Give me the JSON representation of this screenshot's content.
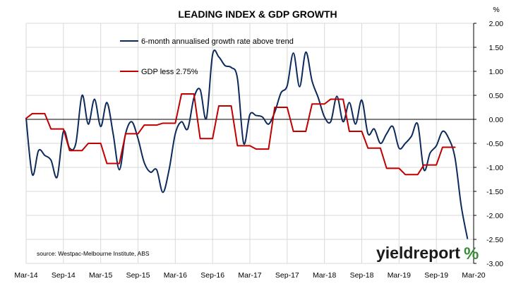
{
  "colors": {
    "leading_index": "#0c2a5b",
    "gdp": "#c00000",
    "grid": "#d9d9d9",
    "axis": "#000000",
    "logo_accent_green": "#3a8a3a",
    "logo_accent_red": "#c00000"
  },
  "source": "source: Westpac-Melbourne Institute, ABS",
  "logo": {
    "text": "yieldreport",
    "symbol": "%"
  },
  "chart_data": {
    "type": "line",
    "title": "LEADING INDEX & GDP GROWTH",
    "y_unit": "%",
    "ylim": [
      -3.0,
      2.0
    ],
    "y_ticks": [
      2.0,
      1.5,
      1.0,
      0.5,
      0.0,
      -0.5,
      -1.0,
      -1.5,
      -2.0,
      -2.5,
      -3.0
    ],
    "y_tick_labels": [
      "2.00",
      "1.50",
      "1.00",
      "0.50",
      "0.00",
      "-0.50",
      "-1.00",
      "-1.50",
      "-2.00",
      "-2.50",
      "-3.00"
    ],
    "xlim": [
      0,
      72
    ],
    "x_ticks": [
      0,
      6,
      12,
      18,
      24,
      30,
      36,
      42,
      48,
      54,
      60,
      66,
      72
    ],
    "x_tick_labels": [
      "Mar-14",
      "Sep-14",
      "Mar-15",
      "Sep-15",
      "Mar-16",
      "Sep-16",
      "Mar-17",
      "Sep-17",
      "Mar-18",
      "Sep-18",
      "Mar-19",
      "Sep-19",
      "Mar-20"
    ],
    "x_unit_note": "x = months since Mar-14",
    "grid": true,
    "legend_position": "top-left",
    "series": [
      {
        "name": "6-month annualised growth rate above trend",
        "style": "smooth",
        "x": [
          0,
          1,
          2,
          3,
          4,
          5,
          6,
          7,
          8,
          9,
          10,
          11,
          12,
          13,
          14,
          15,
          16,
          17,
          18,
          19,
          20,
          21,
          22,
          23,
          24,
          25,
          26,
          27,
          28,
          29,
          30,
          31,
          32,
          33,
          34,
          35,
          36,
          37,
          38,
          39,
          40,
          41,
          42,
          43,
          44,
          45,
          46,
          47,
          48,
          49,
          50,
          51,
          52,
          53,
          54,
          55,
          56,
          57,
          58,
          59,
          60,
          61,
          62,
          63,
          64,
          65,
          66,
          67,
          68,
          69,
          70,
          71
        ],
        "values": [
          0.02,
          -1.15,
          -0.65,
          -0.75,
          -0.85,
          -1.2,
          -0.25,
          -0.6,
          -0.5,
          0.5,
          -0.1,
          0.42,
          -0.15,
          0.35,
          -0.3,
          -1.05,
          -0.3,
          -0.05,
          -0.4,
          -0.9,
          -1.1,
          -1.05,
          -1.52,
          -1.05,
          -0.3,
          -0.05,
          -0.2,
          0.45,
          0.62,
          0.02,
          1.35,
          1.3,
          1.12,
          1.08,
          0.85,
          -0.5,
          0.1,
          0.08,
          0.05,
          -0.1,
          0.15,
          0.55,
          0.7,
          1.38,
          0.68,
          1.4,
          0.8,
          0.45,
          0.05,
          -0.05,
          0.48,
          -0.05,
          0.35,
          -0.1,
          0.4,
          -0.3,
          -0.2,
          -0.5,
          -0.3,
          -0.15,
          -0.6,
          -0.5,
          -0.35,
          -0.1,
          -1.05,
          -0.7,
          -0.55,
          -0.25,
          -0.4,
          -0.8,
          -1.8,
          -2.48
        ]
      },
      {
        "name": "GDP less 2.75%",
        "style": "step",
        "x": [
          0,
          1,
          3,
          4,
          6,
          7,
          9,
          10,
          12,
          13,
          15,
          16,
          18,
          19,
          21,
          22,
          24,
          25,
          27,
          28,
          30,
          31,
          33,
          34,
          36,
          37,
          39,
          40,
          42,
          43,
          45,
          46,
          48,
          49,
          51,
          52,
          54,
          55,
          57,
          58,
          60,
          61,
          63,
          64,
          66,
          67,
          69
        ],
        "values": [
          0.02,
          0.12,
          0.12,
          -0.2,
          -0.2,
          -0.65,
          -0.65,
          -0.5,
          -0.5,
          -0.92,
          -0.92,
          -0.3,
          -0.3,
          -0.12,
          -0.12,
          -0.08,
          -0.08,
          0.53,
          0.53,
          -0.4,
          -0.4,
          0.28,
          0.28,
          -0.55,
          -0.55,
          -0.62,
          -0.62,
          0.25,
          0.25,
          -0.25,
          -0.25,
          0.32,
          0.32,
          0.42,
          0.42,
          -0.25,
          -0.25,
          -0.6,
          -0.6,
          -1.02,
          -1.02,
          -1.15,
          -1.15,
          -0.95,
          -0.95,
          -0.58,
          -0.58
        ]
      }
    ]
  }
}
